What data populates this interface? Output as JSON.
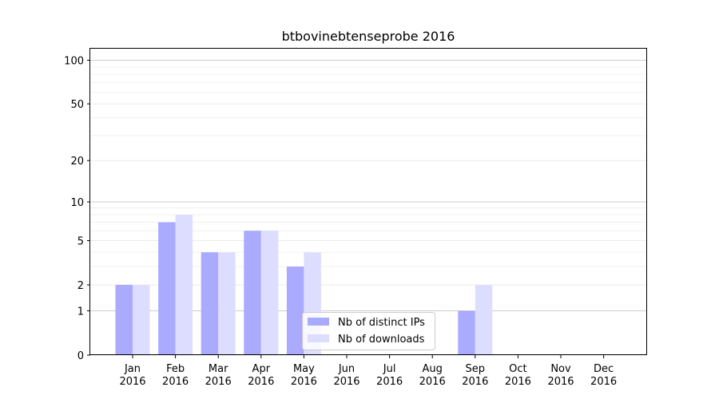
{
  "chart_data": {
    "type": "bar",
    "title": "btbovinebtenseprobe 2016",
    "xlabel": "",
    "ylabel": "",
    "scale": "log(1+y)",
    "ylim": [
      0,
      120
    ],
    "grid": true,
    "legend_position": "lower-center",
    "categories": [
      {
        "month": "Jan",
        "year": "2016"
      },
      {
        "month": "Feb",
        "year": "2016"
      },
      {
        "month": "Mar",
        "year": "2016"
      },
      {
        "month": "Apr",
        "year": "2016"
      },
      {
        "month": "May",
        "year": "2016"
      },
      {
        "month": "Jun",
        "year": "2016"
      },
      {
        "month": "Jul",
        "year": "2016"
      },
      {
        "month": "Aug",
        "year": "2016"
      },
      {
        "month": "Sep",
        "year": "2016"
      },
      {
        "month": "Oct",
        "year": "2016"
      },
      {
        "month": "Nov",
        "year": "2016"
      },
      {
        "month": "Dec",
        "year": "2016"
      }
    ],
    "yticks": [
      "0",
      "1",
      "2",
      "5",
      "10",
      "20",
      "50",
      "100"
    ],
    "series": [
      {
        "name": "Nb of distinct IPs",
        "color": "#aaaaff",
        "values": [
          2,
          7,
          4,
          6,
          3,
          0,
          0,
          0,
          1,
          0,
          0,
          0
        ]
      },
      {
        "name": "Nb of downloads",
        "color": "#ddddff",
        "values": [
          2,
          8,
          4,
          6,
          4,
          0,
          0,
          0,
          2,
          0,
          0,
          0
        ]
      }
    ]
  }
}
